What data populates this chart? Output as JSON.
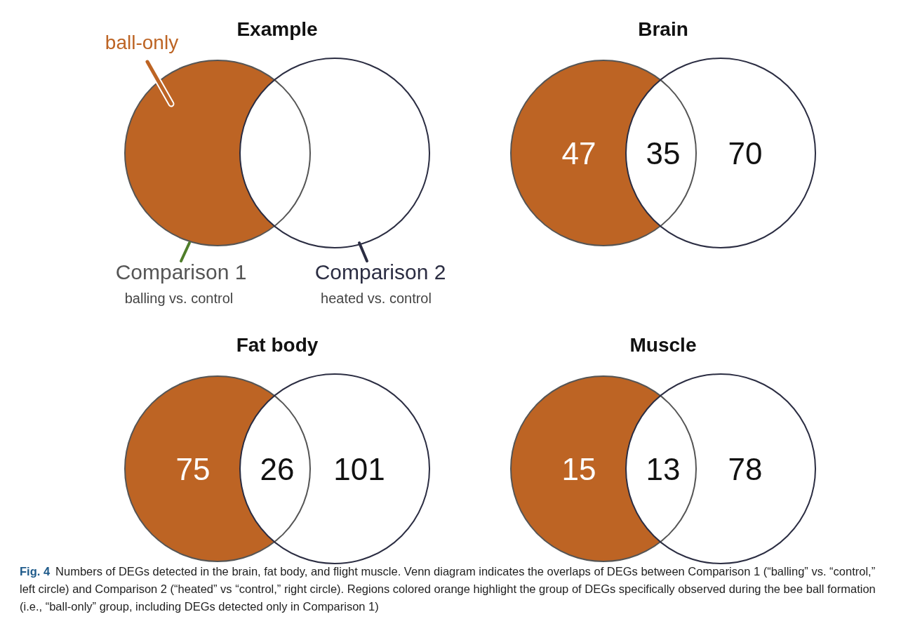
{
  "chart_data": [
    {
      "type": "other",
      "title": "Example",
      "colors": [
        "#bd6424",
        "#ffffff",
        "#ffffff"
      ],
      "annotations": [
        "ball-only",
        "Comparison 1",
        "balling vs. control",
        "Comparison 2",
        "heated vs. control"
      ]
    },
    {
      "type": "other",
      "title": "Brain",
      "categories": [
        null,
        null,
        null
      ],
      "values": [
        47,
        35,
        70
      ],
      "data_labels": true,
      "colors": [
        "#bd6424",
        "#ffffff",
        "#ffffff"
      ]
    },
    {
      "type": "other",
      "title": "Fat body",
      "categories": [
        null,
        null,
        null
      ],
      "values": [
        75,
        26,
        101
      ],
      "data_labels": true,
      "colors": [
        "#bd6424",
        "#ffffff",
        "#ffffff"
      ]
    },
    {
      "type": "other",
      "title": "Muscle",
      "categories": [
        null,
        null,
        null
      ],
      "values": [
        15,
        13,
        78
      ],
      "data_labels": true,
      "colors": [
        "#bd6424",
        "#ffffff",
        "#ffffff"
      ],
      "annotations": [
        "Fig. 4",
        "Numbers of DEGs detected in the brain, fat body, and flight muscle. Venn diagram indicates the overlaps of DEGs between Comparison 1 (“balling” vs. “control,” left circle) and Comparison 2 (“heated” vs “control,” right circle). Regions colored orange highlight the group of DEGs specifically observed during the bee ball formation (i.e., “ball-only” group, including DEGs detected only in Comparison 1)"
      ]
    }
  ]
}
